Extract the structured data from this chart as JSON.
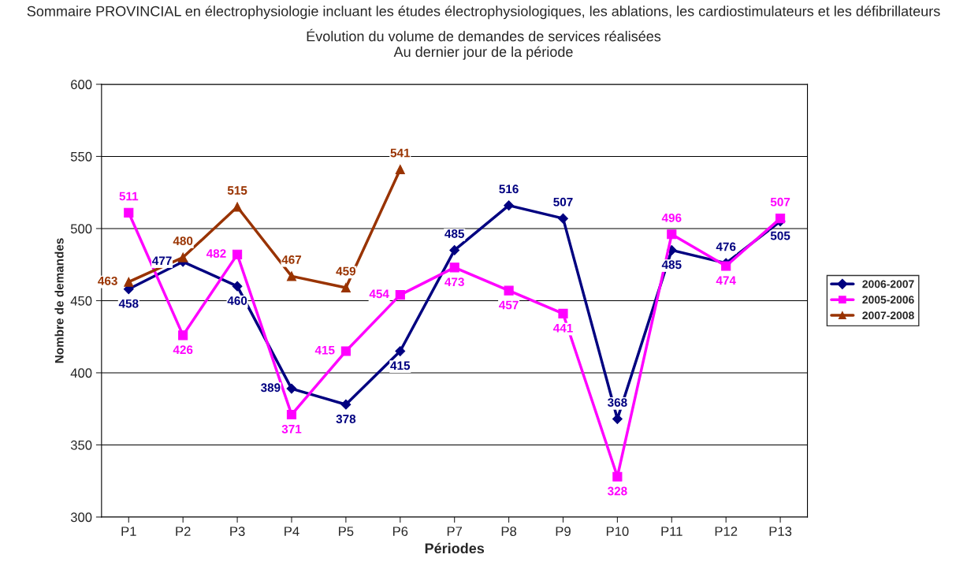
{
  "chart_data": {
    "type": "line",
    "title": "Sommaire PROVINCIAL en électrophysiologie incluant les études électrophysiologiques, les ablations, les cardiostimulateurs et les défibrillateurs",
    "subtitle": "Évolution du volume de demandes de services réalisées\nAu dernier jour de la période",
    "xlabel": "Périodes",
    "ylabel": "Nombre de demandes",
    "categories": [
      "P1",
      "P2",
      "P3",
      "P4",
      "P5",
      "P6",
      "P7",
      "P8",
      "P9",
      "P10",
      "P11",
      "P12",
      "P13"
    ],
    "series": [
      {
        "name": "2006-2007",
        "color": "#000080",
        "marker": "diamond",
        "values": [
          458,
          477,
          460,
          389,
          378,
          415,
          485,
          516,
          507,
          368,
          485,
          476,
          505
        ]
      },
      {
        "name": "2005-2006",
        "color": "#ff00ff",
        "marker": "square",
        "values": [
          511,
          426,
          482,
          371,
          415,
          454,
          473,
          457,
          441,
          328,
          496,
          474,
          507
        ]
      },
      {
        "name": "2007-2008",
        "color": "#993300",
        "marker": "triangle",
        "values": [
          463,
          480,
          515,
          467,
          459,
          541,
          null,
          null,
          null,
          null,
          null,
          null,
          null
        ]
      }
    ],
    "ylim": [
      300,
      600
    ],
    "yticks": [
      300,
      350,
      400,
      450,
      500,
      550,
      600
    ],
    "grid": "y",
    "legend": "right",
    "data_labels": true,
    "line_style": "solid"
  }
}
